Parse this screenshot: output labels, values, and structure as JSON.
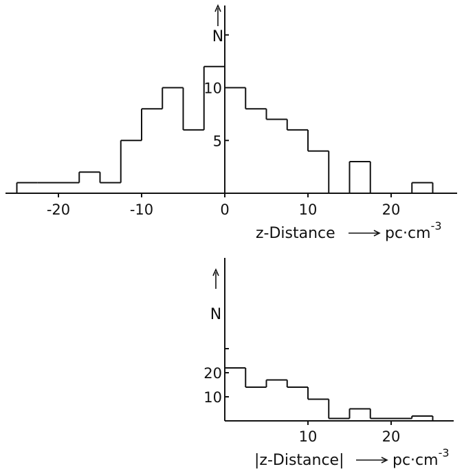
{
  "chart_data": [
    {
      "type": "bar",
      "style": "histogram-step",
      "bin_width": 2.5,
      "bin_centers": [
        -23.75,
        -21.25,
        -18.75,
        -16.25,
        -13.75,
        -11.25,
        -8.75,
        -6.25,
        -3.75,
        -1.25,
        1.25,
        3.75,
        6.25,
        8.75,
        11.25,
        13.75,
        16.25,
        18.75,
        21.25,
        23.75
      ],
      "values": [
        1,
        1,
        1,
        2,
        1,
        5,
        8,
        10,
        6,
        12,
        10,
        8,
        7,
        6,
        4,
        0,
        3,
        0,
        0,
        1
      ],
      "xlim": [
        -27,
        27
      ],
      "ylim": [
        0,
        17
      ],
      "xticks": [
        -20,
        -10,
        0,
        10,
        20
      ],
      "xtick_labels": [
        "-20",
        "-10",
        "0",
        "10",
        "20"
      ],
      "yticks": [
        5,
        10,
        15
      ],
      "ytick_labels": [
        "5",
        "10",
        ""
      ],
      "xlabel": "z-Distance",
      "xlabel_unit": "pc·cm",
      "xlabel_exp": "-3",
      "ylabel": "N",
      "grid": false
    },
    {
      "type": "bar",
      "style": "histogram-step",
      "bin_width": 2.5,
      "bin_centers": [
        1.25,
        3.75,
        6.25,
        8.75,
        11.25,
        13.75,
        16.25,
        18.75,
        21.25,
        23.75
      ],
      "values": [
        22,
        14,
        17,
        14,
        9,
        1,
        5,
        1,
        1,
        2
      ],
      "xlim": [
        0,
        27
      ],
      "ylim": [
        0,
        35
      ],
      "xticks": [
        10,
        20
      ],
      "xtick_labels": [
        "10",
        "20"
      ],
      "yticks": [
        10,
        20,
        30
      ],
      "ytick_labels": [
        "10",
        "20",
        ""
      ],
      "xlabel": "|z-Distance|",
      "xlabel_unit": "pc·cm",
      "xlabel_exp": "-3",
      "ylabel": "N",
      "grid": false
    }
  ]
}
